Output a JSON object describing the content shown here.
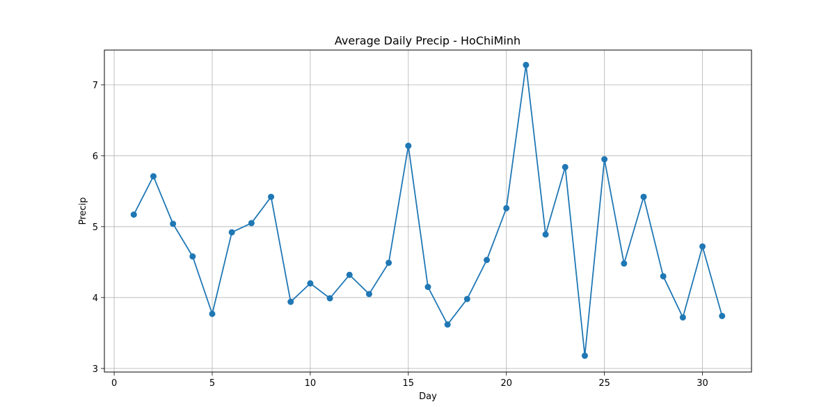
{
  "chart_data": {
    "type": "line",
    "title": "Average Daily Precip - HoChiMinh",
    "xlabel": "Day",
    "ylabel": "Precip",
    "xlim": [
      -0.5,
      32.5
    ],
    "ylim": [
      2.95,
      7.49
    ],
    "xticks": [
      0,
      5,
      10,
      15,
      20,
      25,
      30
    ],
    "yticks": [
      3,
      4,
      5,
      6,
      7
    ],
    "grid": true,
    "series": [
      {
        "color": "#1f77b4",
        "marker": "circle",
        "x": [
          1,
          2,
          3,
          4,
          5,
          6,
          7,
          8,
          9,
          10,
          11,
          12,
          13,
          14,
          15,
          16,
          17,
          18,
          19,
          20,
          21,
          22,
          23,
          24,
          25,
          26,
          27,
          28,
          29,
          30,
          31
        ],
        "y": [
          5.17,
          5.71,
          5.04,
          4.58,
          3.77,
          4.92,
          5.05,
          5.42,
          3.94,
          4.2,
          3.99,
          4.32,
          4.05,
          4.49,
          6.14,
          4.15,
          3.62,
          3.98,
          4.53,
          5.26,
          7.28,
          4.89,
          5.84,
          3.18,
          5.95,
          4.48,
          5.42,
          4.3,
          3.72,
          4.72,
          3.74
        ]
      }
    ]
  }
}
